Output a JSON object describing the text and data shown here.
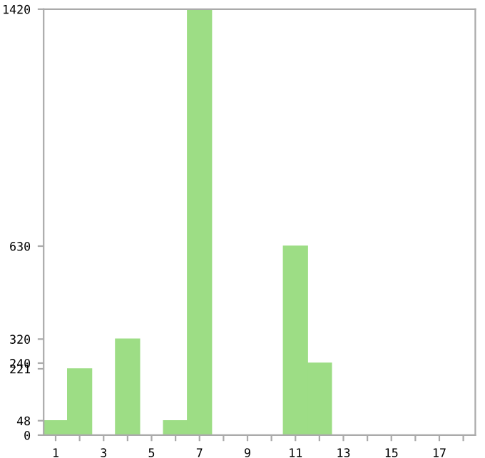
{
  "chart_data": {
    "type": "bar",
    "categories": [
      "1",
      null,
      "3",
      null,
      "5",
      null,
      "7",
      null,
      "9",
      null,
      "11",
      null,
      "13",
      null,
      "15",
      null,
      "17",
      null
    ],
    "values": [
      48,
      221,
      0,
      320,
      0,
      48,
      1420,
      0,
      0,
      0,
      630,
      240,
      0,
      0,
      0,
      0,
      0,
      0
    ],
    "color": "#9ddd85",
    "ylim": [
      0,
      1420
    ],
    "yticks": [
      0,
      48,
      221,
      240,
      320,
      630,
      1420
    ],
    "grid": false
  }
}
